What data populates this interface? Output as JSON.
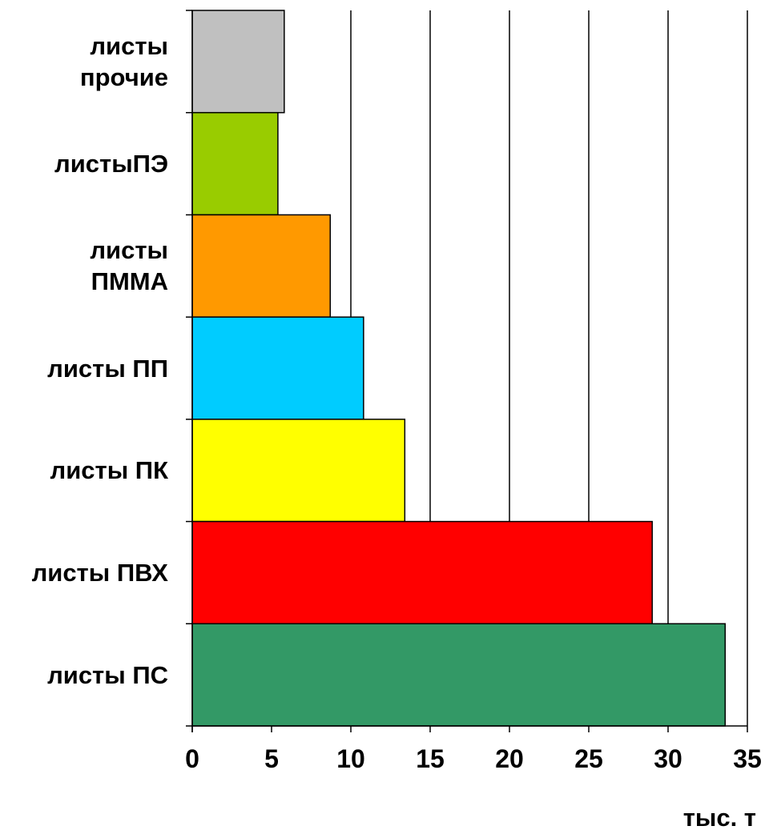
{
  "chart_data": {
    "type": "bar",
    "orientation": "horizontal",
    "categories": [
      "листы прочие",
      "листыПЭ",
      "листы ПММА",
      "листы ПП",
      "листы ПК",
      "листы ПВХ",
      "листы ПС"
    ],
    "category_labels": [
      "листы\nпрочие",
      "листыПЭ",
      "листы\nПММА",
      "листы ПП",
      "листы ПК",
      "листы ПВХ",
      "листы ПС"
    ],
    "values": [
      5.8,
      5.4,
      8.7,
      10.8,
      13.4,
      29.0,
      33.6
    ],
    "colors": [
      "#c0c0c0",
      "#99cc00",
      "#ff9900",
      "#00ccff",
      "#ffff00",
      "#ff0000",
      "#339966"
    ],
    "xlim": [
      0,
      35
    ],
    "xticks": [
      "0",
      "5",
      "10",
      "15",
      "20",
      "25",
      "30",
      "35"
    ],
    "xunit": "тыс. т",
    "grid": "vertical"
  }
}
